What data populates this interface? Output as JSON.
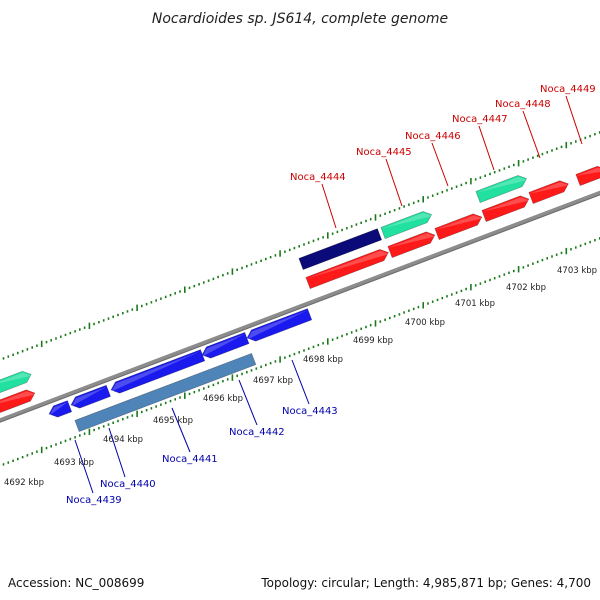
{
  "title": "Nocardioides sp. JS614, complete genome",
  "footer": {
    "accession": "Accession: NC_008699",
    "summary": "Topology: circular; Length: 4,985,871 bp; Genes: 4,700"
  },
  "colors": {
    "backbone": "#8c8c8c",
    "tick": "#1a7a1a",
    "label_forward": "#cc0000",
    "label_reverse": "#0000aa",
    "gene_red": "#ff1a1a",
    "gene_teal": "#22e0a0",
    "gene_blue": "#1a1aee",
    "gene_navy": "#0a0a78",
    "gene_steel": "#4f84b8"
  },
  "scale_labels": [
    "4692 kbp",
    "4693 kbp",
    "4694 kbp",
    "4695 kbp",
    "4696 kbp",
    "4697 kbp",
    "4698 kbp",
    "4699 kbp",
    "4700 kbp",
    "4701 kbp",
    "4702 kbp",
    "4703 kbp"
  ],
  "gene_labels_top": [
    "Noca_4444",
    "Noca_4445",
    "Noca_4446",
    "Noca_4447",
    "Noca_4448",
    "Noca_4449"
  ],
  "gene_labels_bottom": [
    "Noca_4439",
    "Noca_4440",
    "Noca_4441",
    "Noca_4442",
    "Noca_4443"
  ]
}
